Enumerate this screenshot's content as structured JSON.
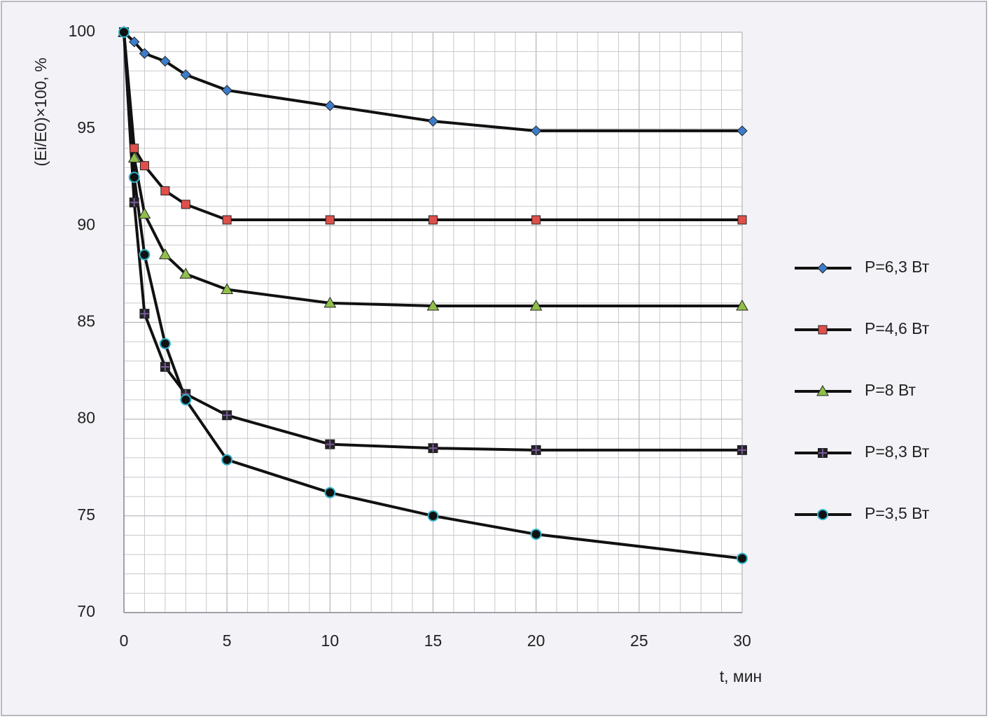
{
  "chart_data": {
    "type": "line",
    "y_label": "(Ei/E0)×100, %",
    "x_label": "t, мин",
    "x": [
      0,
      0.5,
      1,
      2,
      3,
      5,
      10,
      15,
      20,
      30
    ],
    "xlim": [
      0,
      30
    ],
    "xticks": [
      0,
      5,
      10,
      15,
      20,
      25,
      30
    ],
    "ylim": [
      70,
      100
    ],
    "yticks": [
      70,
      75,
      80,
      85,
      90,
      95,
      100
    ],
    "grid": true,
    "legend": "right",
    "series": [
      {
        "name": "P=6,3 Вт",
        "color": "#3d7cc9",
        "marker": "diamond",
        "values": [
          100,
          99.5,
          98.9,
          98.5,
          97.8,
          97.0,
          96.2,
          95.4,
          94.9,
          94.9
        ]
      },
      {
        "name": "P=4,6 Вт",
        "color": "#e0504a",
        "marker": "square",
        "values": [
          100,
          94.0,
          93.1,
          91.8,
          91.1,
          90.3,
          90.3,
          90.3,
          90.3,
          90.3
        ]
      },
      {
        "name": "P=8 Вт",
        "color": "#8fbf4a",
        "marker": "triangle",
        "values": [
          100,
          93.5,
          90.6,
          88.5,
          87.5,
          86.7,
          86.0,
          85.85,
          85.85,
          85.85
        ]
      },
      {
        "name": "P=8,3 Вт",
        "color": "#7a5a9a",
        "marker": "cross-square",
        "values": [
          100,
          91.2,
          85.45,
          82.7,
          81.3,
          80.2,
          78.7,
          78.5,
          78.4,
          78.4
        ]
      },
      {
        "name": "P=3,5 Вт",
        "color": "#2fb3c8",
        "marker": "circle",
        "values": [
          100,
          92.5,
          88.5,
          83.9,
          81.0,
          77.9,
          76.2,
          75.0,
          74.05,
          72.8
        ]
      }
    ]
  }
}
